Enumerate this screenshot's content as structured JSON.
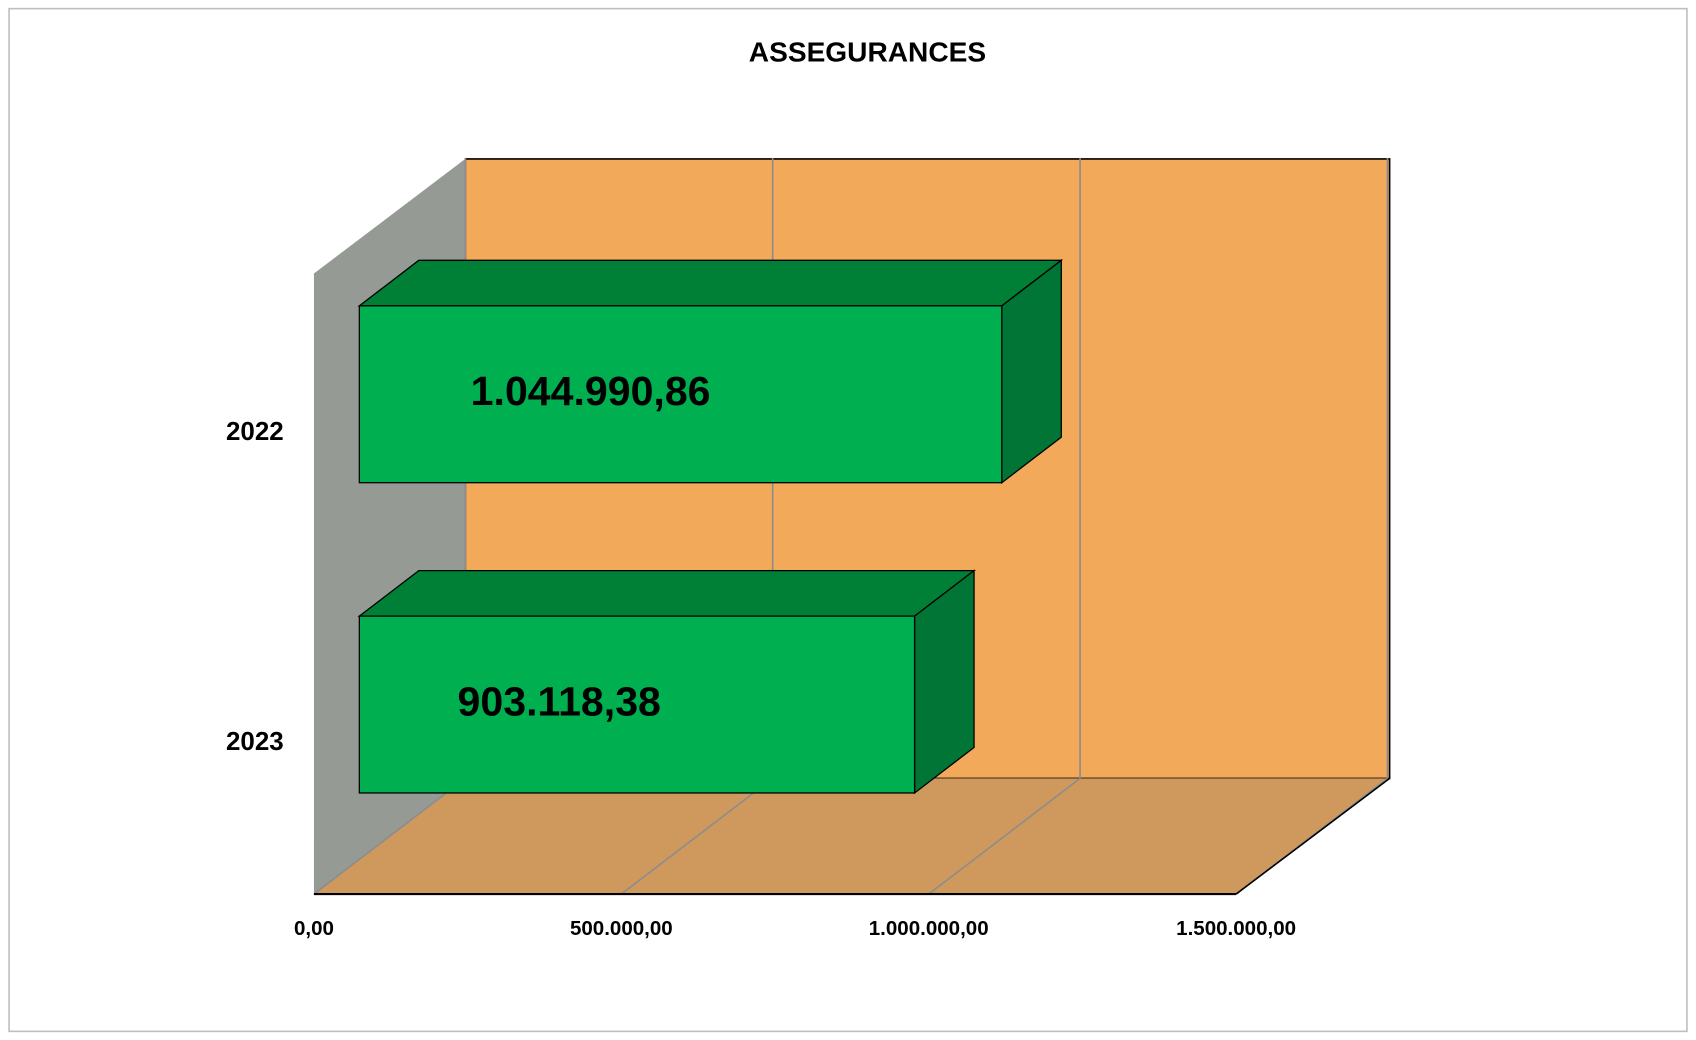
{
  "chart_data": {
    "type": "bar3d",
    "orientation": "horizontal",
    "title": "ASSEGURANCES",
    "categories": [
      "2022",
      "2023"
    ],
    "values": [
      1044990.86,
      903118.38
    ],
    "value_labels": [
      "1.044.990,86",
      "903.118,38"
    ],
    "color": "#00b050",
    "xlim": [
      0,
      1500000
    ],
    "xticks": [
      {
        "value": 0,
        "label": "0,00"
      },
      {
        "value": 500000,
        "label": "500.000,00"
      },
      {
        "value": 1000000,
        "label": "1.000.000,00"
      },
      {
        "value": 1500000,
        "label": "1.500.000,00"
      }
    ],
    "grid": true
  }
}
